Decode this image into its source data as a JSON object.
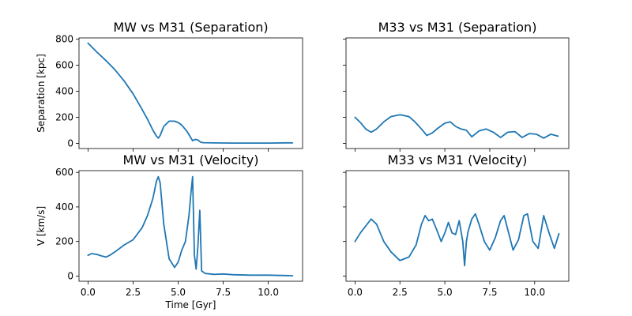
{
  "colors": {
    "series": "#1f77b4"
  },
  "chart_data": [
    {
      "type": "line",
      "title": "MW vs M31 (Separation)",
      "xlabel": "",
      "ylabel": "Separation [kpc]",
      "xlim": [
        -0.5,
        11.9
      ],
      "ylim": [
        -40,
        810
      ],
      "xticks": [
        0.0,
        2.5,
        5.0,
        7.5,
        10.0
      ],
      "yticks": [
        0,
        200,
        400,
        600,
        800
      ],
      "show_xtick_labels": false,
      "show_ytick_labels": true,
      "grid": false,
      "series": [
        {
          "x": [
            0,
            0.5,
            1.0,
            1.5,
            2.0,
            2.5,
            3.0,
            3.3,
            3.6,
            3.8,
            3.9,
            4.0,
            4.2,
            4.5,
            4.8,
            5.0,
            5.2,
            5.5,
            5.8,
            5.95,
            6.1,
            6.25,
            6.4,
            7.0,
            8.0,
            9.0,
            10.0,
            11.0,
            11.35
          ],
          "y": [
            770,
            700,
            635,
            565,
            480,
            380,
            260,
            185,
            100,
            55,
            40,
            60,
            130,
            170,
            170,
            160,
            140,
            90,
            20,
            30,
            25,
            8,
            5,
            3,
            2,
            2,
            2,
            4,
            3
          ]
        }
      ]
    },
    {
      "type": "line",
      "title": "M33 vs M31 (Separation)",
      "xlabel": "",
      "ylabel": "",
      "xlim": [
        -0.5,
        11.9
      ],
      "ylim": [
        -40,
        810
      ],
      "xticks": [
        0.0,
        2.5,
        5.0,
        7.5,
        10.0
      ],
      "yticks": [
        0,
        200,
        400,
        600,
        800
      ],
      "show_xtick_labels": false,
      "show_ytick_labels": false,
      "grid": false,
      "series": [
        {
          "x": [
            0,
            0.3,
            0.6,
            0.9,
            1.2,
            1.6,
            2.0,
            2.5,
            3.0,
            3.3,
            3.7,
            4.0,
            4.3,
            4.6,
            5.0,
            5.3,
            5.6,
            5.9,
            6.2,
            6.5,
            6.9,
            7.3,
            7.7,
            8.1,
            8.5,
            8.9,
            9.3,
            9.7,
            10.1,
            10.5,
            10.9,
            11.3
          ],
          "y": [
            200,
            160,
            110,
            85,
            110,
            165,
            205,
            220,
            205,
            170,
            110,
            60,
            80,
            115,
            155,
            165,
            130,
            110,
            100,
            50,
            95,
            110,
            85,
            45,
            85,
            90,
            45,
            75,
            70,
            40,
            70,
            55
          ]
        }
      ]
    },
    {
      "type": "line",
      "title": "MW vs M31 (Velocity)",
      "xlabel": "Time [Gyr]",
      "ylabel": "V [km/s]",
      "xlim": [
        -0.5,
        11.9
      ],
      "ylim": [
        -30,
        610
      ],
      "xticks": [
        0.0,
        2.5,
        5.0,
        7.5,
        10.0
      ],
      "yticks": [
        0,
        200,
        400,
        600
      ],
      "show_xtick_labels": true,
      "show_ytick_labels": true,
      "grid": false,
      "series": [
        {
          "x": [
            0,
            0.2,
            0.5,
            0.8,
            1.0,
            1.2,
            1.5,
            2.0,
            2.5,
            3.0,
            3.3,
            3.6,
            3.8,
            3.9,
            4.0,
            4.2,
            4.5,
            4.8,
            5.0,
            5.2,
            5.4,
            5.6,
            5.7,
            5.8,
            5.9,
            6.0,
            6.1,
            6.2,
            6.3,
            6.5,
            7.0,
            7.5,
            8.0,
            9.0,
            10.0,
            11.0,
            11.35
          ],
          "y": [
            120,
            130,
            125,
            115,
            110,
            120,
            140,
            180,
            210,
            280,
            350,
            450,
            550,
            575,
            540,
            300,
            100,
            50,
            80,
            150,
            200,
            350,
            470,
            575,
            120,
            40,
            180,
            380,
            30,
            15,
            10,
            12,
            8,
            5,
            5,
            3,
            2
          ]
        }
      ]
    },
    {
      "type": "line",
      "title": "M33 vs M31 (Velocity)",
      "xlabel": "",
      "ylabel": "",
      "xlim": [
        -0.5,
        11.9
      ],
      "ylim": [
        -30,
        610
      ],
      "xticks": [
        0.0,
        2.5,
        5.0,
        7.5,
        10.0
      ],
      "yticks": [
        0,
        200,
        400,
        600
      ],
      "show_xtick_labels": true,
      "show_ytick_labels": false,
      "grid": false,
      "series": [
        {
          "x": [
            0,
            0.3,
            0.6,
            0.9,
            1.2,
            1.6,
            2.0,
            2.5,
            3.0,
            3.4,
            3.7,
            3.9,
            4.1,
            4.3,
            4.5,
            4.8,
            5.0,
            5.2,
            5.4,
            5.6,
            5.8,
            6.0,
            6.1,
            6.2,
            6.3,
            6.5,
            6.7,
            6.9,
            7.2,
            7.5,
            7.8,
            8.1,
            8.3,
            8.5,
            8.8,
            9.1,
            9.4,
            9.6,
            9.9,
            10.2,
            10.5,
            10.8,
            11.1,
            11.35
          ],
          "y": [
            200,
            250,
            290,
            330,
            300,
            200,
            140,
            90,
            110,
            180,
            300,
            350,
            320,
            330,
            280,
            200,
            250,
            310,
            250,
            240,
            320,
            200,
            60,
            200,
            260,
            330,
            360,
            300,
            200,
            150,
            220,
            320,
            350,
            270,
            150,
            210,
            350,
            360,
            200,
            160,
            350,
            250,
            160,
            245
          ]
        }
      ]
    }
  ]
}
